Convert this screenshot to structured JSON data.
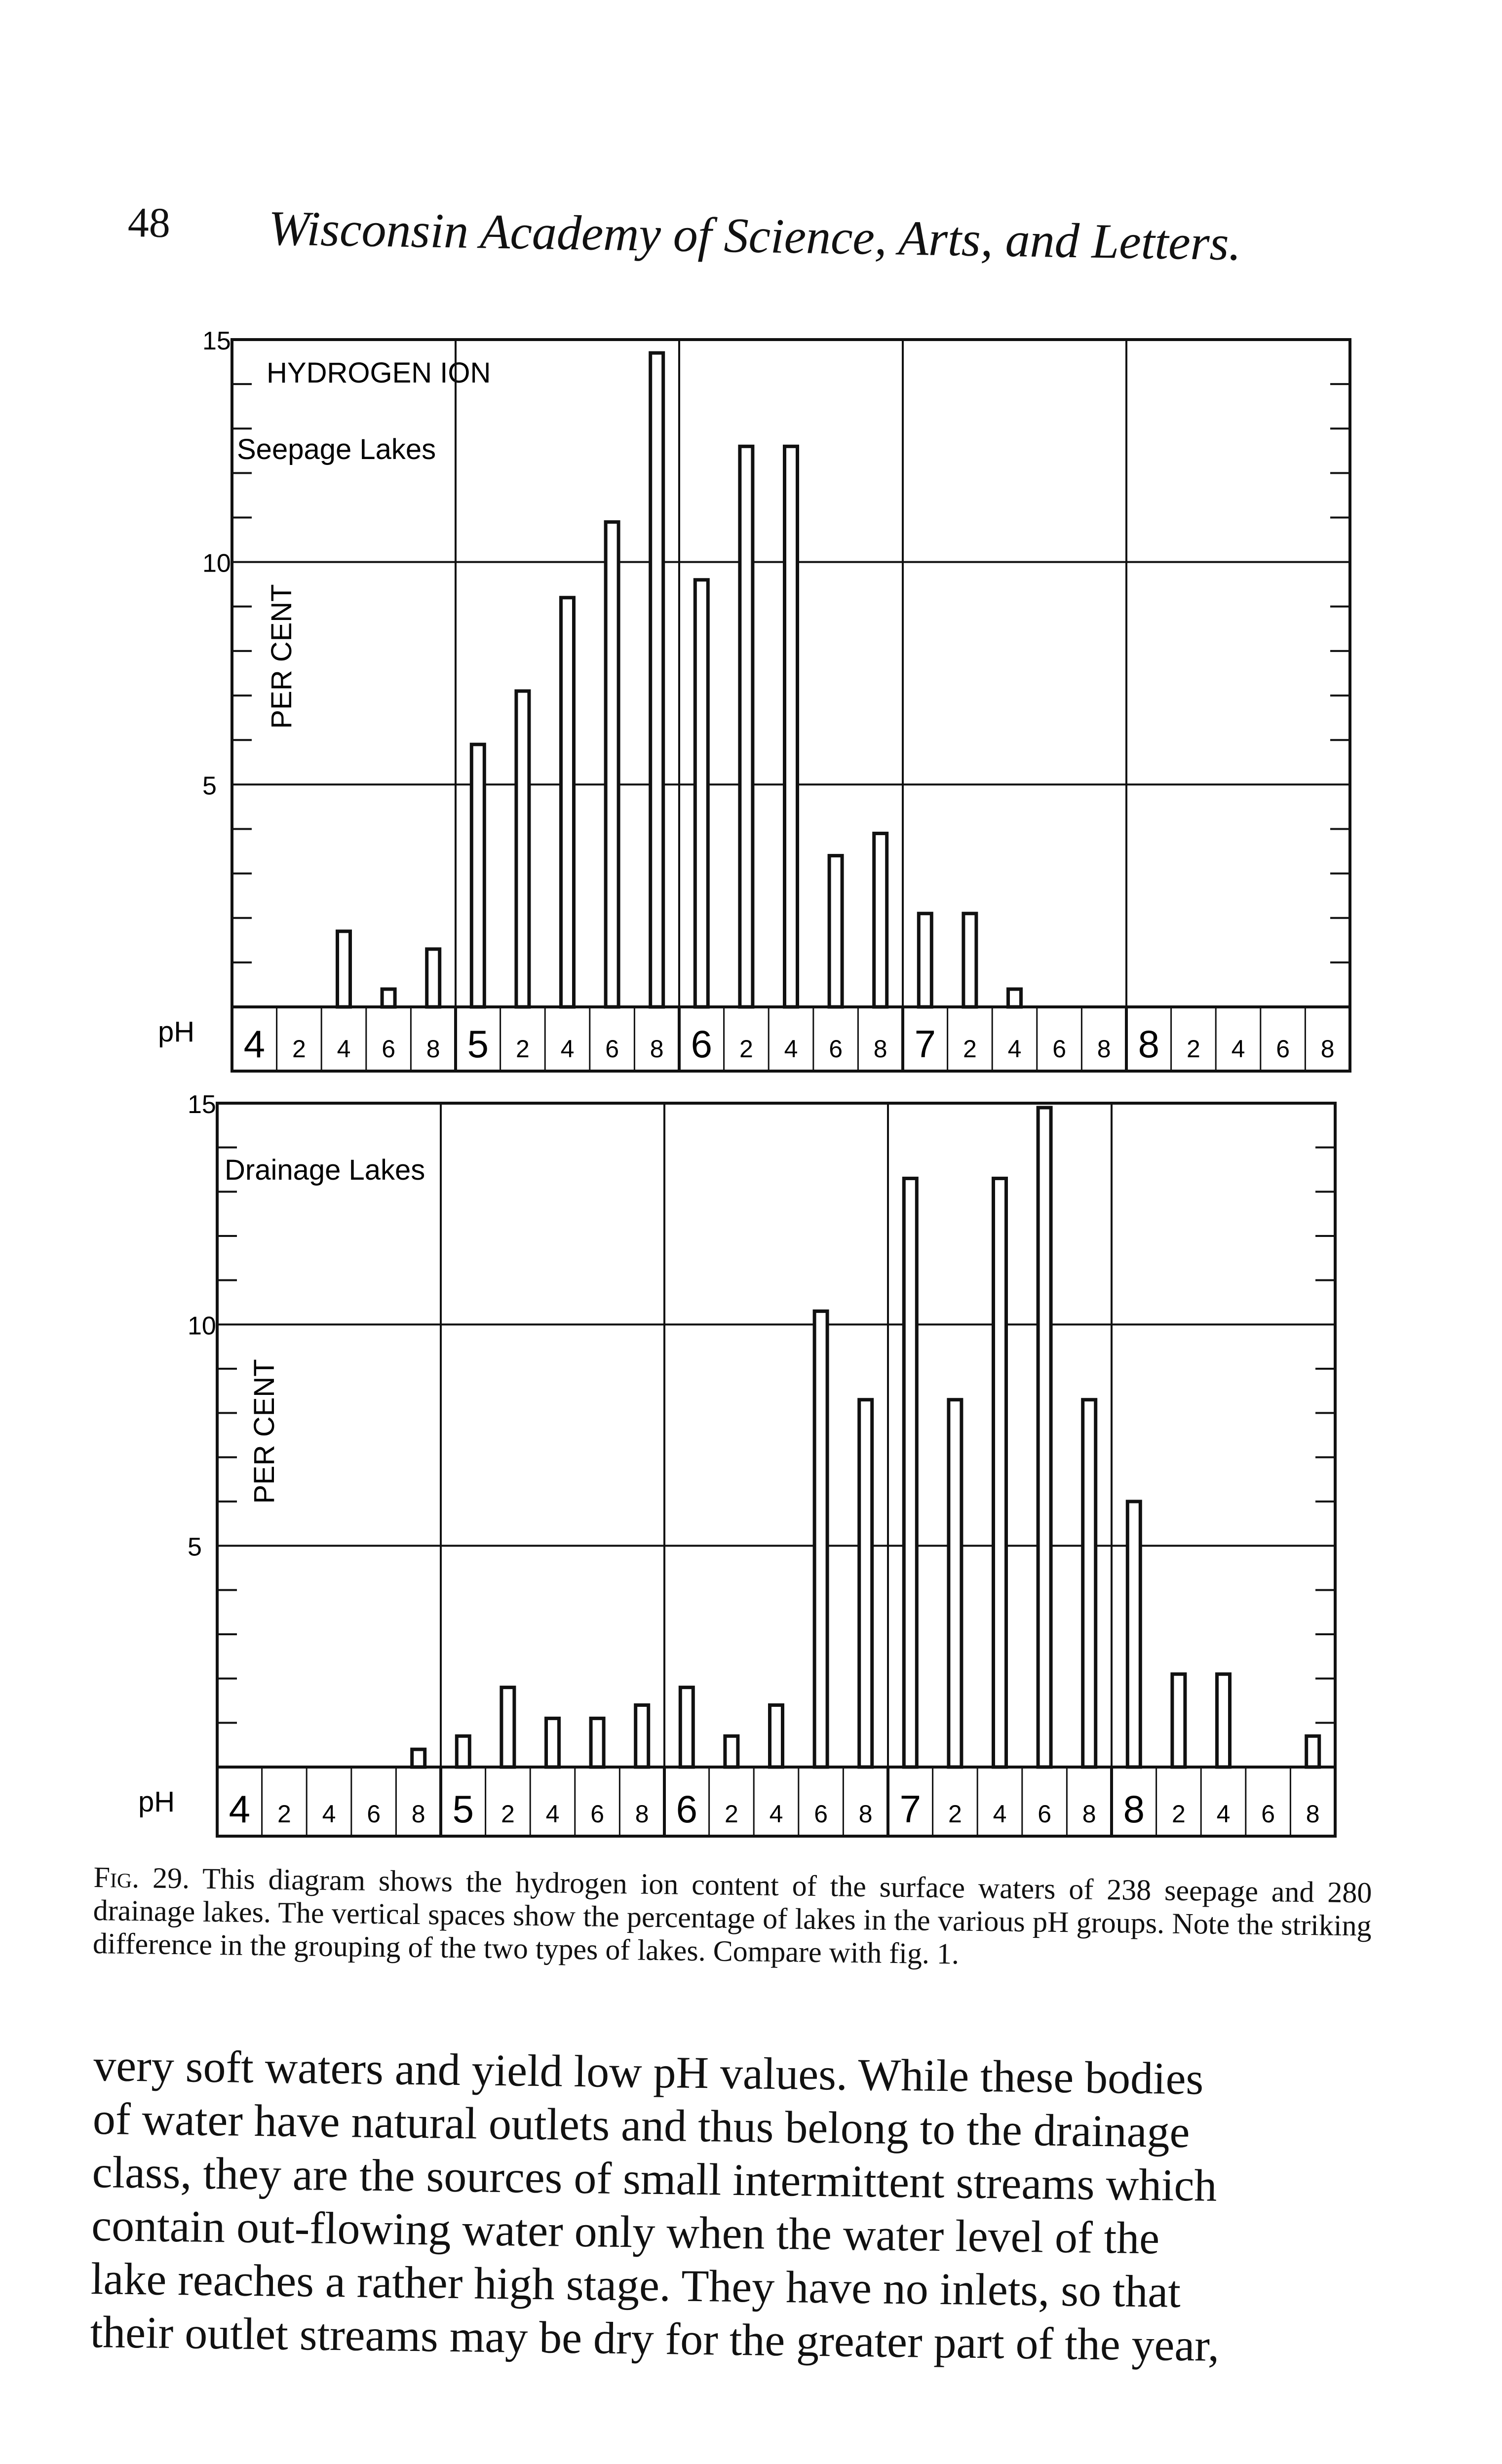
{
  "header": {
    "page_number": "48",
    "running_title": "Wisconsin Academy of Science, Arts, and Letters."
  },
  "chart_data": [
    {
      "type": "bar",
      "title": "HYDROGEN ION",
      "subtitle": "Seepage Lakes",
      "ylabel": "PER CENT",
      "xlabel": "pH",
      "ylim": [
        0,
        15
      ],
      "yticks": [
        "15",
        "10",
        "5"
      ],
      "group_labels": [
        "4",
        "5",
        "6",
        "7",
        "8"
      ],
      "categories": [
        "4.0",
        "4.2",
        "4.4",
        "4.6",
        "4.8",
        "5.0",
        "5.2",
        "5.4",
        "5.6",
        "5.8",
        "6.0",
        "6.2",
        "6.4",
        "6.6",
        "6.8",
        "7.0",
        "7.2",
        "7.4",
        "7.6",
        "7.8",
        "8.0",
        "8.2",
        "8.4",
        "8.6",
        "8.8"
      ],
      "x_tick_labels": [
        "4",
        "2",
        "4",
        "6",
        "8",
        "5",
        "2",
        "4",
        "6",
        "8",
        "6",
        "2",
        "4",
        "6",
        "8",
        "7",
        "2",
        "4",
        "6",
        "8",
        "8",
        "2",
        "4",
        "6",
        "8"
      ],
      "values": [
        0,
        0,
        1.7,
        0.4,
        1.3,
        5.9,
        7.1,
        9.2,
        10.9,
        14.7,
        9.6,
        12.6,
        12.6,
        3.4,
        3.9,
        2.1,
        2.1,
        0.4,
        0,
        0,
        0,
        0,
        0,
        0,
        0
      ],
      "grid": true,
      "legend": "none"
    },
    {
      "type": "bar",
      "subtitle": "Drainage Lakes",
      "ylabel": "PER CENT",
      "xlabel": "pH",
      "ylim": [
        0,
        15
      ],
      "yticks": [
        "15",
        "10",
        "5"
      ],
      "group_labels": [
        "4",
        "5",
        "6",
        "7",
        "8"
      ],
      "categories": [
        "4.0",
        "4.2",
        "4.4",
        "4.6",
        "4.8",
        "5.0",
        "5.2",
        "5.4",
        "5.6",
        "5.8",
        "6.0",
        "6.2",
        "6.4",
        "6.6",
        "6.8",
        "7.0",
        "7.2",
        "7.4",
        "7.6",
        "7.8",
        "8.0",
        "8.2",
        "8.4",
        "8.6",
        "8.8"
      ],
      "x_tick_labels": [
        "4",
        "2",
        "4",
        "6",
        "8",
        "5",
        "2",
        "4",
        "6",
        "8",
        "6",
        "2",
        "4",
        "6",
        "8",
        "7",
        "2",
        "4",
        "6",
        "8",
        "8",
        "2",
        "4",
        "6",
        "8"
      ],
      "values": [
        0,
        0,
        0,
        0,
        0.4,
        0.7,
        1.8,
        1.1,
        1.1,
        1.4,
        1.8,
        0.7,
        1.4,
        10.3,
        8.3,
        13.3,
        8.3,
        13.3,
        14.9,
        8.3,
        6.0,
        2.1,
        2.1,
        0,
        0.7
      ],
      "grid": true,
      "legend": "none"
    }
  ],
  "caption": {
    "fig_label": "Fig. 29.",
    "text": "This diagram shows the hydrogen ion content of the surface waters of 238 seepage and 280 drainage lakes. The vertical spaces show the percentage of lakes in the various pH groups. Note the striking difference in the grouping of the two types of lakes. Compare with fig. 1."
  },
  "body_lines": [
    "very soft waters and yield low pH values. While these bodies",
    "of water have natural outlets and thus belong to the drainage",
    "class, they are the sources of small intermittent streams which",
    "contain out-flowing water only when the water level of the",
    "lake reaches a rather high stage. They have no inlets, so that",
    "their outlet streams may be dry for the greater part of the year,"
  ]
}
